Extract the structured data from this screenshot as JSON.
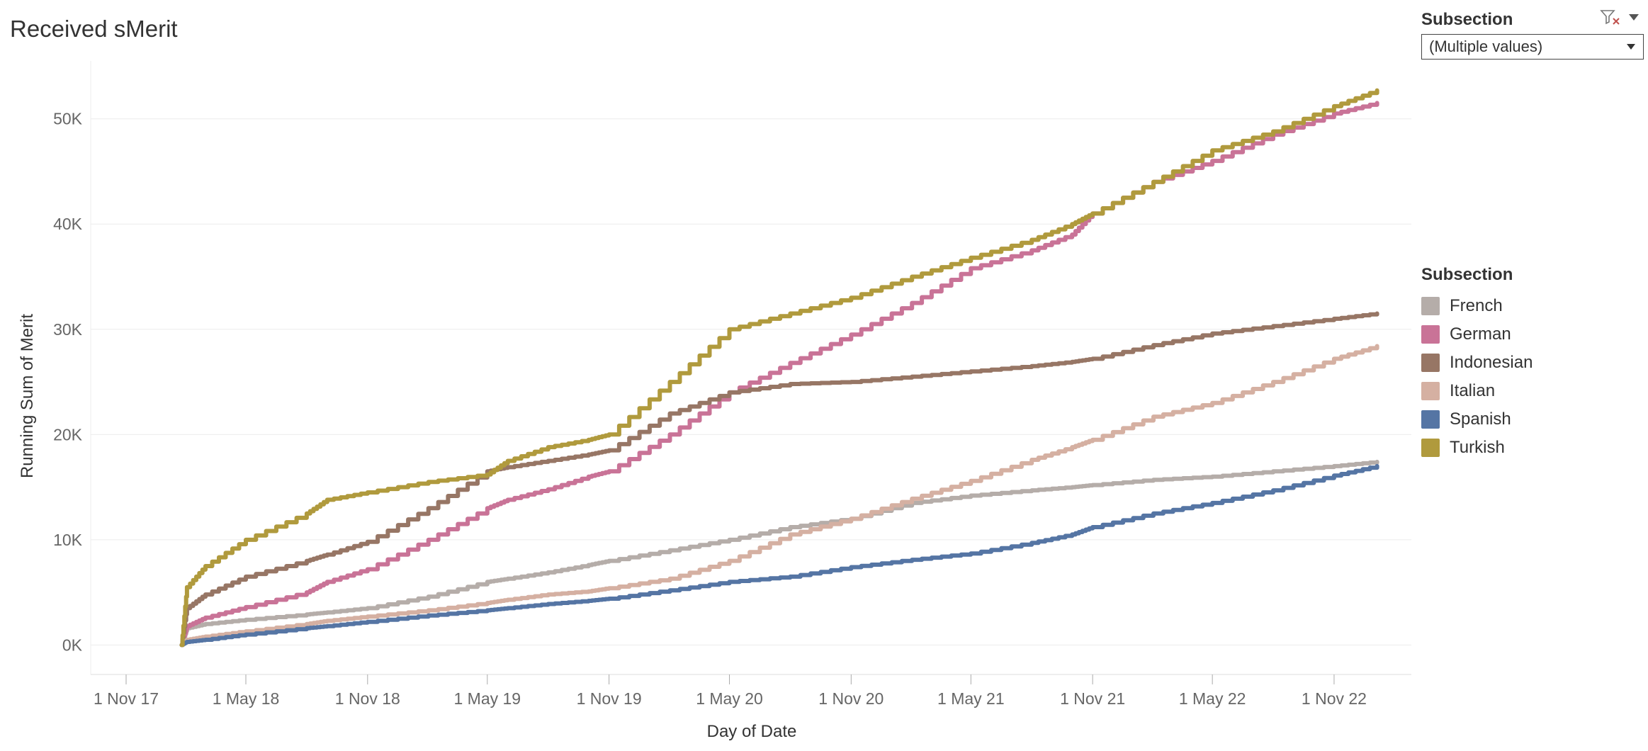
{
  "title": "Received sMerit",
  "filter": {
    "title": "Subsection",
    "selected": "(Multiple values)"
  },
  "legend": {
    "title": "Subsection"
  },
  "chart_data": {
    "type": "line",
    "title": "Received sMerit",
    "xlabel": "Day of Date",
    "ylabel": "Running Sum of Merit",
    "x_ticks": [
      "1 Nov 17",
      "1 May 18",
      "1 Nov 18",
      "1 May 19",
      "1 Nov 19",
      "1 May 20",
      "1 Nov 20",
      "1 May 21",
      "1 Nov 21",
      "1 May 22",
      "1 Nov 22"
    ],
    "y_ticks": [
      0,
      10000,
      20000,
      30000,
      40000,
      50000
    ],
    "y_tick_labels": [
      "0K",
      "10K",
      "20K",
      "30K",
      "40K",
      "50K"
    ],
    "ylim": [
      -2800,
      55500
    ],
    "grid": "horizontal",
    "legend_position": "right",
    "x": [
      "2018-01-24",
      "2018-02-01",
      "2018-03-01",
      "2018-05-01",
      "2018-08-01",
      "2018-09-01",
      "2018-11-01",
      "2019-02-01",
      "2019-05-01",
      "2019-06-01",
      "2019-08-01",
      "2019-10-01",
      "2019-11-01",
      "2020-02-01",
      "2020-05-01",
      "2020-08-01",
      "2020-11-01",
      "2021-02-01",
      "2021-05-01",
      "2021-08-01",
      "2021-10-01",
      "2021-11-01",
      "2022-02-01",
      "2022-05-01",
      "2022-08-01",
      "2022-11-01",
      "2023-01-05"
    ],
    "series": [
      {
        "name": "French",
        "color": "#B5ADA9",
        "values": [
          0,
          1600,
          2000,
          2400,
          2900,
          3100,
          3500,
          4600,
          6000,
          6300,
          6900,
          7600,
          8000,
          9000,
          10000,
          11200,
          12000,
          13500,
          14200,
          14700,
          15000,
          15200,
          15700,
          16000,
          16500,
          17000,
          17400
        ]
      },
      {
        "name": "German",
        "color": "#C97397",
        "values": [
          0,
          1800,
          2600,
          3600,
          5000,
          6000,
          7200,
          10000,
          13000,
          13800,
          14800,
          16000,
          16500,
          20000,
          24000,
          26800,
          29500,
          32500,
          35800,
          37500,
          39000,
          41000,
          44000,
          46000,
          48500,
          50500,
          51500
        ]
      },
      {
        "name": "Indonesian",
        "color": "#977665",
        "values": [
          0,
          3500,
          4800,
          6500,
          8000,
          8600,
          9800,
          13000,
          16500,
          16900,
          17500,
          18100,
          18500,
          22000,
          24000,
          24800,
          25000,
          25500,
          26000,
          26500,
          26900,
          27200,
          28500,
          29600,
          30300,
          31000,
          31500
        ]
      },
      {
        "name": "Italian",
        "color": "#D5B0A2",
        "values": [
          0,
          500,
          800,
          1300,
          2000,
          2300,
          2700,
          3300,
          4000,
          4300,
          4800,
          5100,
          5400,
          6300,
          8000,
          10500,
          12000,
          13900,
          15600,
          17600,
          18800,
          19500,
          21700,
          23000,
          25000,
          27200,
          28400
        ]
      },
      {
        "name": "Spanish",
        "color": "#5575A4",
        "values": [
          0,
          300,
          500,
          1000,
          1600,
          1800,
          2200,
          2800,
          3300,
          3500,
          3900,
          4200,
          4400,
          5200,
          6000,
          6500,
          7400,
          8100,
          8700,
          9700,
          10500,
          11200,
          12500,
          13500,
          14700,
          16100,
          17000
        ]
      },
      {
        "name": "Turkish",
        "color": "#B09A3D",
        "values": [
          0,
          5500,
          7500,
          10000,
          12500,
          13800,
          14500,
          15500,
          16200,
          17500,
          18800,
          19500,
          20000,
          25000,
          30000,
          31500,
          33000,
          35000,
          36800,
          38500,
          40000,
          41000,
          44000,
          47000,
          48800,
          51200,
          52700
        ]
      }
    ]
  }
}
